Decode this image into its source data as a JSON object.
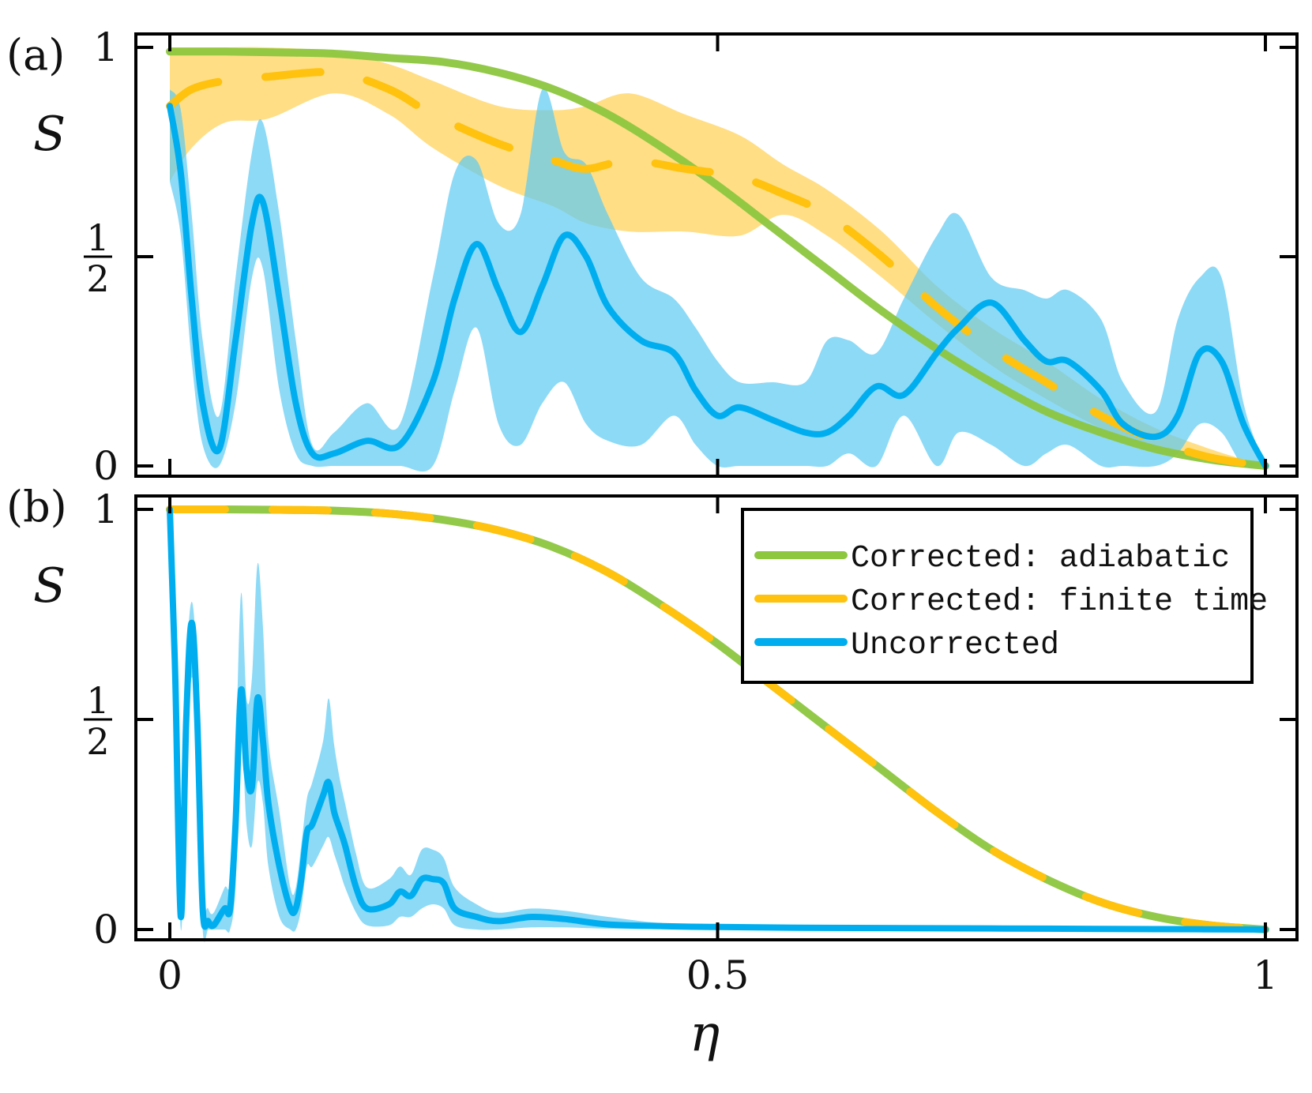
{
  "colors": {
    "adiabatic": "#8dc63f",
    "finite": "#ffc20e",
    "finite_band": "#ffd35c",
    "uncorrected": "#00aeef",
    "uncorrected_band": "#5ccaf4",
    "axis": "#000000"
  },
  "chart_data": [
    {
      "type": "line",
      "panel_label": "(a)",
      "ylabel": "S",
      "xlim": [
        0,
        1
      ],
      "ylim": [
        0,
        1
      ],
      "yticks": [
        {
          "value": 0,
          "label": "0"
        },
        {
          "value": 0.5,
          "label_num": "1",
          "label_den": "2"
        },
        {
          "value": 1,
          "label": "1"
        }
      ],
      "series": [
        {
          "name": "Corrected: adiabatic",
          "style": "solid",
          "x": [
            0,
            0.05,
            0.1,
            0.15,
            0.2,
            0.25,
            0.3,
            0.35,
            0.4,
            0.45,
            0.5,
            0.55,
            0.6,
            0.65,
            0.7,
            0.75,
            0.8,
            0.85,
            0.9,
            0.95,
            1.0
          ],
          "y": [
            0.99,
            0.99,
            0.988,
            0.985,
            0.975,
            0.965,
            0.94,
            0.9,
            0.84,
            0.76,
            0.67,
            0.57,
            0.47,
            0.37,
            0.28,
            0.2,
            0.13,
            0.08,
            0.04,
            0.015,
            0.0
          ]
        },
        {
          "name": "Corrected: finite time",
          "style": "dashed",
          "x": [
            0,
            0.02,
            0.05,
            0.09,
            0.15,
            0.2,
            0.24,
            0.3,
            0.35,
            0.38,
            0.42,
            0.47,
            0.52,
            0.56,
            0.6,
            0.65,
            0.7,
            0.75,
            0.8,
            0.85,
            0.9,
            0.95,
            1.0
          ],
          "y": [
            0.86,
            0.9,
            0.92,
            0.93,
            0.94,
            0.9,
            0.84,
            0.77,
            0.73,
            0.71,
            0.73,
            0.71,
            0.69,
            0.65,
            0.6,
            0.5,
            0.38,
            0.28,
            0.2,
            0.12,
            0.06,
            0.02,
            0.0
          ]
        },
        {
          "name": "Uncorrected",
          "style": "solid",
          "x": [
            0,
            0.01,
            0.02,
            0.03,
            0.045,
            0.06,
            0.075,
            0.085,
            0.1,
            0.115,
            0.13,
            0.15,
            0.18,
            0.21,
            0.24,
            0.26,
            0.28,
            0.3,
            0.32,
            0.34,
            0.36,
            0.38,
            0.4,
            0.43,
            0.46,
            0.48,
            0.5,
            0.52,
            0.55,
            0.58,
            0.6,
            0.62,
            0.645,
            0.67,
            0.7,
            0.72,
            0.75,
            0.78,
            0.8,
            0.82,
            0.85,
            0.87,
            0.9,
            0.92,
            0.94,
            0.96,
            0.98,
            1.0
          ],
          "y": [
            0.86,
            0.7,
            0.4,
            0.15,
            0.04,
            0.3,
            0.58,
            0.63,
            0.4,
            0.15,
            0.03,
            0.03,
            0.06,
            0.05,
            0.2,
            0.4,
            0.53,
            0.42,
            0.32,
            0.43,
            0.55,
            0.5,
            0.38,
            0.3,
            0.27,
            0.18,
            0.12,
            0.14,
            0.11,
            0.08,
            0.08,
            0.12,
            0.19,
            0.17,
            0.27,
            0.33,
            0.39,
            0.3,
            0.25,
            0.25,
            0.18,
            0.1,
            0.07,
            0.12,
            0.27,
            0.25,
            0.1,
            0.0
          ]
        }
      ],
      "bands": [
        {
          "name": "finite time spread",
          "x": [
            0,
            0.02,
            0.05,
            0.09,
            0.15,
            0.2,
            0.24,
            0.3,
            0.35,
            0.38,
            0.42,
            0.47,
            0.52,
            0.56,
            0.6,
            0.65,
            0.7,
            0.75,
            0.8,
            0.85,
            0.9,
            0.95,
            1.0
          ],
          "lower": [
            0.68,
            0.76,
            0.82,
            0.83,
            0.89,
            0.84,
            0.76,
            0.67,
            0.62,
            0.58,
            0.56,
            0.56,
            0.55,
            0.6,
            0.55,
            0.45,
            0.34,
            0.24,
            0.16,
            0.09,
            0.04,
            0.01,
            0.0
          ],
          "upper": [
            1.0,
            1.0,
            1.0,
            1.0,
            0.99,
            0.96,
            0.92,
            0.86,
            0.85,
            0.86,
            0.89,
            0.84,
            0.79,
            0.72,
            0.66,
            0.56,
            0.43,
            0.33,
            0.25,
            0.16,
            0.09,
            0.04,
            0.0
          ]
        },
        {
          "name": "uncorrected spread",
          "x": [
            0,
            0.01,
            0.02,
            0.03,
            0.045,
            0.06,
            0.075,
            0.085,
            0.1,
            0.115,
            0.13,
            0.15,
            0.18,
            0.21,
            0.24,
            0.26,
            0.28,
            0.3,
            0.32,
            0.34,
            0.36,
            0.38,
            0.4,
            0.43,
            0.46,
            0.48,
            0.5,
            0.52,
            0.55,
            0.58,
            0.6,
            0.62,
            0.645,
            0.67,
            0.7,
            0.72,
            0.75,
            0.78,
            0.8,
            0.82,
            0.85,
            0.87,
            0.9,
            0.92,
            0.94,
            0.96,
            0.98,
            1.0
          ],
          "lower": [
            0.68,
            0.55,
            0.25,
            0.05,
            0.0,
            0.15,
            0.45,
            0.47,
            0.18,
            0.03,
            0.0,
            0.0,
            0.0,
            0.0,
            0.0,
            0.18,
            0.33,
            0.1,
            0.05,
            0.15,
            0.2,
            0.1,
            0.06,
            0.05,
            0.12,
            0.05,
            0.0,
            0.0,
            0.0,
            0.0,
            0.0,
            0.03,
            0.0,
            0.12,
            0.0,
            0.08,
            0.05,
            0.0,
            0.03,
            0.05,
            0.0,
            0.0,
            0.0,
            0.03,
            0.1,
            0.08,
            0.0,
            0.0
          ],
          "upper": [
            0.9,
            0.85,
            0.6,
            0.3,
            0.12,
            0.45,
            0.75,
            0.82,
            0.6,
            0.3,
            0.05,
            0.08,
            0.15,
            0.1,
            0.45,
            0.7,
            0.73,
            0.58,
            0.6,
            0.9,
            0.75,
            0.72,
            0.6,
            0.45,
            0.4,
            0.33,
            0.25,
            0.2,
            0.2,
            0.2,
            0.3,
            0.3,
            0.27,
            0.4,
            0.55,
            0.6,
            0.45,
            0.42,
            0.4,
            0.42,
            0.35,
            0.2,
            0.13,
            0.35,
            0.45,
            0.45,
            0.15,
            0.0
          ]
        }
      ]
    },
    {
      "type": "line",
      "panel_label": "(b)",
      "ylabel": "S",
      "xlabel": "η",
      "xlim": [
        0,
        1
      ],
      "ylim": [
        0,
        1
      ],
      "xticks": [
        {
          "value": 0,
          "label": "0"
        },
        {
          "value": 0.5,
          "label": "0.5"
        },
        {
          "value": 1,
          "label": "1"
        }
      ],
      "yticks": [
        {
          "value": 0,
          "label": "0"
        },
        {
          "value": 0.5,
          "label_num": "1",
          "label_den": "2"
        },
        {
          "value": 1,
          "label": "1"
        }
      ],
      "legend": {
        "position": "top-right",
        "entries": [
          {
            "name": "Corrected: adiabatic",
            "color_key": "adiabatic"
          },
          {
            "name": "Corrected: finite time",
            "color_key": "finite"
          },
          {
            "name": "Uncorrected",
            "color_key": "uncorrected"
          }
        ]
      },
      "series": [
        {
          "name": "Corrected: adiabatic",
          "style": "solid",
          "x": [
            0,
            0.05,
            0.1,
            0.15,
            0.2,
            0.25,
            0.3,
            0.35,
            0.4,
            0.45,
            0.5,
            0.55,
            0.6,
            0.65,
            0.7,
            0.75,
            0.8,
            0.85,
            0.9,
            0.95,
            1.0
          ],
          "y": [
            1.0,
            1.0,
            0.999,
            0.997,
            0.99,
            0.975,
            0.95,
            0.91,
            0.85,
            0.77,
            0.68,
            0.58,
            0.48,
            0.38,
            0.28,
            0.19,
            0.12,
            0.065,
            0.03,
            0.01,
            0.0
          ]
        },
        {
          "name": "Corrected: finite time",
          "style": "dashed",
          "x": [
            0,
            0.05,
            0.1,
            0.15,
            0.2,
            0.25,
            0.3,
            0.35,
            0.4,
            0.45,
            0.5,
            0.55,
            0.6,
            0.65,
            0.7,
            0.75,
            0.8,
            0.85,
            0.9,
            0.95,
            1.0
          ],
          "y": [
            1.0,
            1.0,
            0.999,
            0.997,
            0.99,
            0.975,
            0.95,
            0.91,
            0.85,
            0.77,
            0.68,
            0.58,
            0.48,
            0.38,
            0.28,
            0.19,
            0.12,
            0.065,
            0.03,
            0.01,
            0.0
          ]
        },
        {
          "name": "Uncorrected",
          "style": "solid",
          "x": [
            0,
            0.005,
            0.01,
            0.015,
            0.02,
            0.025,
            0.03,
            0.035,
            0.04,
            0.05,
            0.055,
            0.06,
            0.065,
            0.07,
            0.075,
            0.08,
            0.085,
            0.09,
            0.1,
            0.11,
            0.115,
            0.12,
            0.125,
            0.13,
            0.14,
            0.145,
            0.15,
            0.155,
            0.16,
            0.17,
            0.18,
            0.2,
            0.21,
            0.22,
            0.23,
            0.24,
            0.25,
            0.26,
            0.28,
            0.3,
            0.33,
            0.36,
            0.4,
            0.45,
            0.5,
            0.6,
            0.7,
            0.8,
            0.9,
            1.0
          ],
          "y": [
            1.0,
            0.6,
            0.03,
            0.5,
            0.73,
            0.5,
            0.05,
            0.02,
            0.01,
            0.05,
            0.05,
            0.25,
            0.57,
            0.38,
            0.34,
            0.55,
            0.45,
            0.3,
            0.15,
            0.05,
            0.05,
            0.12,
            0.23,
            0.25,
            0.32,
            0.35,
            0.28,
            0.24,
            0.2,
            0.1,
            0.05,
            0.06,
            0.09,
            0.08,
            0.12,
            0.12,
            0.11,
            0.05,
            0.03,
            0.02,
            0.03,
            0.025,
            0.012,
            0.008,
            0.006,
            0.004,
            0.003,
            0.002,
            0.001,
            0.0
          ]
        }
      ],
      "bands": [
        {
          "name": "uncorrected spread",
          "x": [
            0,
            0.005,
            0.01,
            0.015,
            0.02,
            0.025,
            0.03,
            0.035,
            0.04,
            0.05,
            0.055,
            0.06,
            0.065,
            0.07,
            0.075,
            0.08,
            0.085,
            0.09,
            0.1,
            0.11,
            0.115,
            0.12,
            0.125,
            0.13,
            0.14,
            0.145,
            0.15,
            0.155,
            0.16,
            0.17,
            0.18,
            0.2,
            0.21,
            0.22,
            0.23,
            0.24,
            0.25,
            0.26,
            0.28,
            0.3,
            0.33,
            0.36,
            0.4,
            0.45,
            0.5,
            0.6,
            0.7,
            0.8,
            0.9,
            1.0
          ],
          "lower": [
            1.0,
            0.55,
            0.0,
            0.35,
            0.6,
            0.4,
            0.0,
            0.0,
            0.0,
            0.0,
            0.0,
            0.1,
            0.45,
            0.25,
            0.2,
            0.35,
            0.3,
            0.15,
            0.03,
            0.0,
            0.0,
            0.05,
            0.15,
            0.15,
            0.2,
            0.22,
            0.18,
            0.14,
            0.1,
            0.04,
            0.01,
            0.01,
            0.03,
            0.03,
            0.05,
            0.06,
            0.05,
            0.01,
            0.0,
            0.0,
            0.005,
            0.005,
            0.002,
            0.002,
            0.002,
            0.001,
            0.001,
            0.001,
            0.0,
            0.0
          ],
          "upper": [
            1.0,
            0.7,
            0.08,
            0.6,
            0.78,
            0.6,
            0.1,
            0.05,
            0.04,
            0.1,
            0.12,
            0.4,
            0.8,
            0.55,
            0.6,
            0.87,
            0.72,
            0.45,
            0.28,
            0.1,
            0.1,
            0.2,
            0.31,
            0.35,
            0.45,
            0.55,
            0.44,
            0.36,
            0.3,
            0.18,
            0.1,
            0.12,
            0.15,
            0.13,
            0.19,
            0.19,
            0.17,
            0.1,
            0.06,
            0.04,
            0.05,
            0.045,
            0.03,
            0.015,
            0.012,
            0.008,
            0.006,
            0.004,
            0.002,
            0.0
          ]
        }
      ]
    }
  ]
}
